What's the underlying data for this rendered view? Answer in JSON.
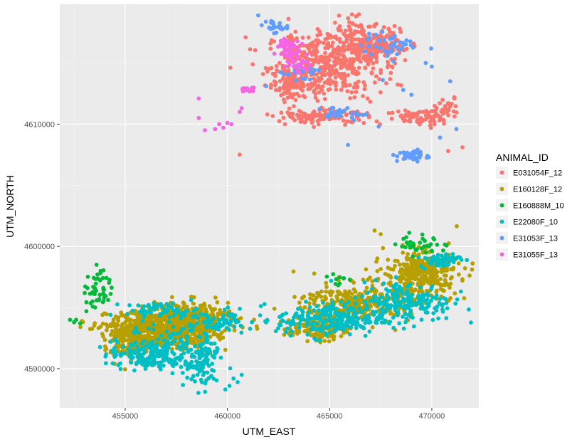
{
  "chart_data": {
    "type": "scatter",
    "xlabel": "UTM_EAST",
    "ylabel": "UTM_NORTH",
    "xlim": [
      451800,
      472300
    ],
    "ylim": [
      4586800,
      4619800
    ],
    "x_ticks": [
      455000,
      460000,
      465000,
      470000
    ],
    "y_ticks": [
      4590000,
      4600000,
      4610000
    ],
    "grid": true,
    "legend": {
      "title": "ANIMAL_ID",
      "position": "right"
    },
    "series": [
      {
        "name": "E031054F_12",
        "color": "#F8766D",
        "clusters": [
          {
            "x": 464700,
            "y": 4614800,
            "sx": 1400,
            "sy": 1400,
            "n": 420
          },
          {
            "x": 466800,
            "y": 4616300,
            "sx": 900,
            "sy": 900,
            "n": 260
          },
          {
            "x": 464600,
            "y": 4610600,
            "sx": 1100,
            "sy": 250,
            "n": 120
          },
          {
            "x": 469600,
            "y": 4610600,
            "sx": 900,
            "sy": 350,
            "n": 80
          },
          {
            "x": 463000,
            "y": 4613300,
            "sx": 400,
            "sy": 600,
            "n": 60
          },
          {
            "x": 470700,
            "y": 4611400,
            "sx": 300,
            "sy": 400,
            "n": 30
          }
        ],
        "points": [
          [
            460600,
            4607500
          ],
          [
            471500,
            4608100
          ],
          [
            470800,
            4607800
          ],
          [
            462800,
            4611800
          ],
          [
            471100,
            4612200
          ]
        ]
      },
      {
        "name": "E160128F_12",
        "color": "#B79F00",
        "clusters": [
          {
            "x": 456800,
            "y": 4593200,
            "sx": 1300,
            "sy": 800,
            "n": 650
          },
          {
            "x": 455200,
            "y": 4592300,
            "sx": 600,
            "sy": 800,
            "n": 140
          },
          {
            "x": 458300,
            "y": 4594200,
            "sx": 900,
            "sy": 700,
            "n": 220
          },
          {
            "x": 466300,
            "y": 4595400,
            "sx": 1300,
            "sy": 800,
            "n": 280
          },
          {
            "x": 469500,
            "y": 4597800,
            "sx": 900,
            "sy": 900,
            "n": 340
          },
          {
            "x": 464300,
            "y": 4593300,
            "sx": 700,
            "sy": 500,
            "n": 120
          }
        ],
        "points": [
          [
            460100,
            4594700
          ],
          [
            461300,
            4594000
          ],
          [
            462800,
            4593200
          ],
          [
            467200,
            4601300
          ],
          [
            467500,
            4601000
          ],
          [
            462300,
            4594900
          ]
        ]
      },
      {
        "name": "E160888M_10",
        "color": "#00BA38",
        "clusters": [
          {
            "x": 453700,
            "y": 4596500,
            "sx": 300,
            "sy": 900,
            "n": 45
          },
          {
            "x": 469600,
            "y": 4600200,
            "sx": 600,
            "sy": 400,
            "n": 35
          },
          {
            "x": 465400,
            "y": 4597300,
            "sx": 500,
            "sy": 300,
            "n": 10
          }
        ],
        "points": [
          [
            452500,
            4593800
          ],
          [
            452800,
            4593700
          ],
          [
            452300,
            4594000
          ],
          [
            452600,
            4594000
          ],
          [
            453100,
            4594700
          ],
          [
            453400,
            4595500
          ],
          [
            453600,
            4598500
          ],
          [
            453800,
            4598000
          ]
        ]
      },
      {
        "name": "E22080F_10",
        "color": "#00BFC4",
        "clusters": [
          {
            "x": 457300,
            "y": 4591600,
            "sx": 1200,
            "sy": 900,
            "n": 200
          },
          {
            "x": 458700,
            "y": 4590200,
            "sx": 400,
            "sy": 900,
            "n": 70
          },
          {
            "x": 455800,
            "y": 4590900,
            "sx": 800,
            "sy": 500,
            "n": 70
          },
          {
            "x": 459600,
            "y": 4593800,
            "sx": 700,
            "sy": 500,
            "n": 60
          },
          {
            "x": 465000,
            "y": 4594000,
            "sx": 1300,
            "sy": 700,
            "n": 240
          },
          {
            "x": 468800,
            "y": 4595500,
            "sx": 1100,
            "sy": 800,
            "n": 200
          },
          {
            "x": 470400,
            "y": 4598900,
            "sx": 500,
            "sy": 300,
            "n": 60
          },
          {
            "x": 456800,
            "y": 4594800,
            "sx": 900,
            "sy": 300,
            "n": 60
          }
        ],
        "points": [
          [
            460500,
            4588900
          ],
          [
            460100,
            4588600
          ],
          [
            460300,
            4589200
          ],
          [
            459900,
            4588300
          ],
          [
            460700,
            4589500
          ],
          [
            461200,
            4593800
          ],
          [
            463100,
            4593600
          ]
        ]
      },
      {
        "name": "E31053F_13",
        "color": "#619CFF",
        "clusters": [
          {
            "x": 469100,
            "y": 4607400,
            "sx": 400,
            "sy": 250,
            "n": 40
          },
          {
            "x": 465400,
            "y": 4610900,
            "sx": 500,
            "sy": 250,
            "n": 25
          },
          {
            "x": 462200,
            "y": 4618000,
            "sx": 350,
            "sy": 250,
            "n": 25
          },
          {
            "x": 468000,
            "y": 4616400,
            "sx": 700,
            "sy": 500,
            "n": 40
          },
          {
            "x": 463600,
            "y": 4614200,
            "sx": 500,
            "sy": 500,
            "n": 20
          }
        ],
        "points": [
          [
            465900,
            4608300
          ],
          [
            471200,
            4609600
          ],
          [
            470400,
            4608900
          ],
          [
            467400,
            4609800
          ],
          [
            466800,
            4610800
          ],
          [
            470000,
            4614700
          ],
          [
            469700,
            4615000
          ],
          [
            468600,
            4612800
          ],
          [
            469000,
            4612400
          ],
          [
            467600,
            4613600
          ],
          [
            461900,
            4613100
          ],
          [
            466200,
            4610300
          ],
          [
            470900,
            4613500
          ]
        ]
      },
      {
        "name": "E31055F_13",
        "color": "#F564E3",
        "clusters": [
          {
            "x": 462900,
            "y": 4616200,
            "sx": 300,
            "sy": 500,
            "n": 55
          },
          {
            "x": 463600,
            "y": 4614900,
            "sx": 250,
            "sy": 300,
            "n": 20
          },
          {
            "x": 461000,
            "y": 4612800,
            "sx": 350,
            "sy": 150,
            "n": 14
          }
        ],
        "points": [
          [
            458600,
            4612100
          ],
          [
            458600,
            4610500
          ],
          [
            459400,
            4609600
          ],
          [
            459800,
            4609700
          ],
          [
            460000,
            4610100
          ],
          [
            460200,
            4610000
          ],
          [
            460600,
            4611000
          ],
          [
            460700,
            4611300
          ],
          [
            458900,
            4609500
          ],
          [
            459600,
            4610000
          ]
        ]
      }
    ]
  }
}
